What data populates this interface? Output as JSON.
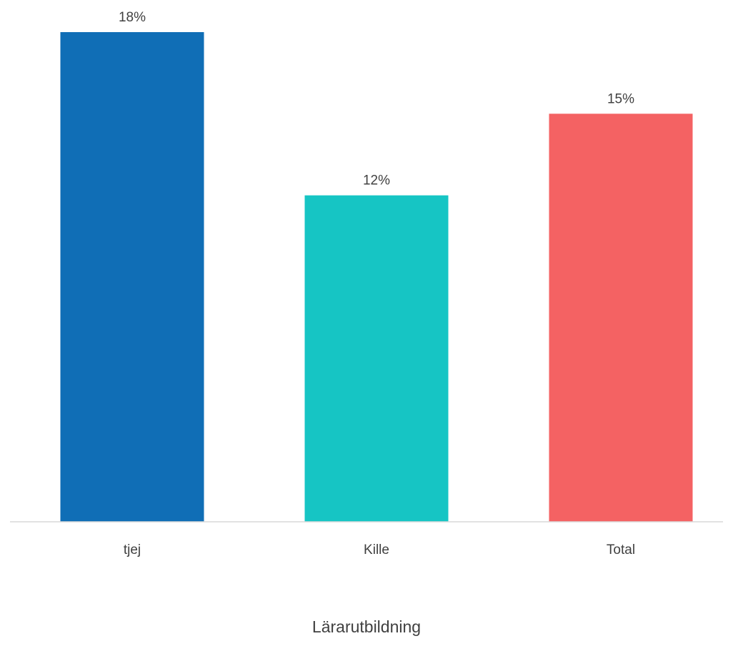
{
  "chart_data": {
    "type": "bar",
    "categories": [
      "tjej",
      "Kille",
      "Total"
    ],
    "values": [
      18,
      12,
      15
    ],
    "value_labels": [
      "18%",
      "12%",
      "15%"
    ],
    "unit": "%",
    "title": "",
    "xlabel": "Lärarutbildning",
    "ylabel": "",
    "ylim": [
      0,
      18
    ],
    "grid": false,
    "legend": "none",
    "colors": [
      "#106EB6",
      "#16C5C4",
      "#F46263"
    ],
    "axis_color": "#D9D9D9"
  }
}
